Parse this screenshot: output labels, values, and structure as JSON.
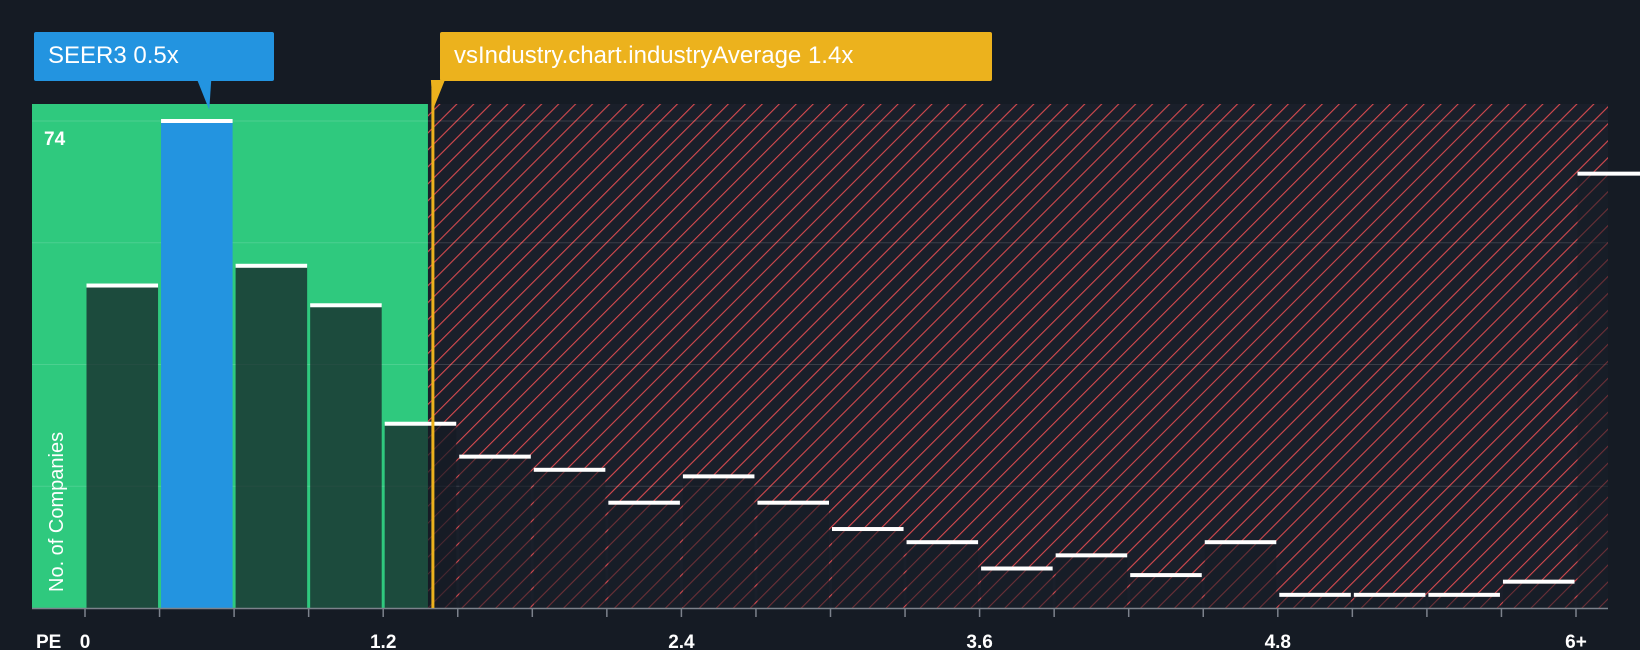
{
  "colors": {
    "background": "#151b24",
    "fair_zone": "#2fc97e",
    "company_bar": "#2394e0",
    "industry_marker": "#ecb21d",
    "overvalued_hatch": "#d64a4f",
    "bar_cap": "#ffffff"
  },
  "company_callout": {
    "ticker": "SEER3",
    "value_label": "0.5x"
  },
  "industry_callout": {
    "label": "vsIndustry.chart.industryAverage",
    "value_label": "1.4x"
  },
  "chart_data": {
    "type": "bar",
    "title": "",
    "xlabel": "PE",
    "ylabel": "No. of Companies",
    "x_ticks": [
      "0",
      "1.2",
      "2.4",
      "3.6",
      "4.8",
      "6+"
    ],
    "x_tick_values": [
      0,
      1.2,
      2.4,
      3.6,
      4.8,
      6.0
    ],
    "y_max_label": "74",
    "ylim": [
      0,
      74
    ],
    "xlim": [
      -0.2,
      6.15
    ],
    "bin_width": 0.3,
    "company_pe": 0.5,
    "industry_average_pe": 1.4,
    "fair_zone_upper_pe": 1.38,
    "bins": [
      {
        "x_start": 0.0,
        "count": 49
      },
      {
        "x_start": 0.3,
        "count": 74,
        "highlight": true
      },
      {
        "x_start": 0.6,
        "count": 52
      },
      {
        "x_start": 0.9,
        "count": 46
      },
      {
        "x_start": 1.2,
        "count": 28
      },
      {
        "x_start": 1.5,
        "count": 23
      },
      {
        "x_start": 1.8,
        "count": 21
      },
      {
        "x_start": 2.1,
        "count": 16
      },
      {
        "x_start": 2.4,
        "count": 20
      },
      {
        "x_start": 2.7,
        "count": 16
      },
      {
        "x_start": 3.0,
        "count": 12
      },
      {
        "x_start": 3.3,
        "count": 10
      },
      {
        "x_start": 3.6,
        "count": 6
      },
      {
        "x_start": 3.9,
        "count": 8
      },
      {
        "x_start": 4.2,
        "count": 5
      },
      {
        "x_start": 4.5,
        "count": 10
      },
      {
        "x_start": 4.8,
        "count": 2
      },
      {
        "x_start": 5.1,
        "count": 2
      },
      {
        "x_start": 5.4,
        "count": 2
      },
      {
        "x_start": 5.7,
        "count": 4
      },
      {
        "x_start": 6.0,
        "count": 66
      }
    ]
  }
}
